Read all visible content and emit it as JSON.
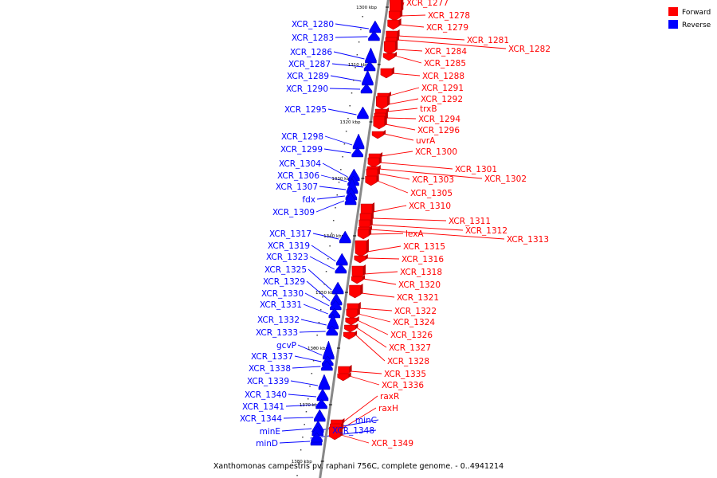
{
  "title": "Xanthomonas campestris pv. raphani 756C, complete genome. - 0..4941214",
  "colors": {
    "forward": "#ff0000",
    "reverse": "#0000ff",
    "backbone": "#888888"
  },
  "legend": [
    {
      "label": "Forward",
      "color": "#ff0000"
    },
    {
      "label": "Reverse",
      "color": "#0000ff"
    }
  ],
  "ticks": [
    "1300 kbp",
    "1310 kbp",
    "1320 kbp",
    "1330 kbp",
    "1340 kbp",
    "1350 kbp",
    "1360 kbp",
    "1370 kbp",
    "1380 kbp"
  ],
  "forward_genes": [
    "XCR_1277",
    "XCR_1278",
    "XCR_1279",
    "XCR_1281",
    "XCR_1282",
    "XCR_1284",
    "XCR_1285",
    "XCR_1288",
    "XCR_1291",
    "XCR_1292",
    "trxB",
    "XCR_1294",
    "XCR_1296",
    "uvrA",
    "XCR_1300",
    "XCR_1301",
    "XCR_1302",
    "XCR_1303",
    "XCR_1305",
    "XCR_1310",
    "XCR_1311",
    "XCR_1312",
    "XCR_1313",
    "lexA",
    "XCR_1315",
    "XCR_1316",
    "XCR_1318",
    "XCR_1320",
    "XCR_1321",
    "XCR_1322",
    "XCR_1324",
    "XCR_1326",
    "XCR_1327",
    "XCR_1328",
    "XCR_1335",
    "XCR_1336",
    "raxR",
    "raxH",
    "XCR_1349"
  ],
  "reverse_genes": [
    "XCR_1280",
    "XCR_1283",
    "XCR_1286",
    "XCR_1287",
    "XCR_1289",
    "XCR_1290",
    "XCR_1295",
    "XCR_1298",
    "XCR_1299",
    "XCR_1304",
    "XCR_1306",
    "XCR_1307",
    "fdx",
    "XCR_1309",
    "XCR_1317",
    "XCR_1319",
    "XCR_1323",
    "XCR_1325",
    "XCR_1329",
    "XCR_1330",
    "XCR_1331",
    "XCR_1332",
    "XCR_1333",
    "gcvP",
    "XCR_1337",
    "XCR_1338",
    "XCR_1339",
    "XCR_1340",
    "XCR_1341",
    "XCR_1344",
    "minE",
    "minD",
    "minC",
    "XCR_1348"
  ]
}
